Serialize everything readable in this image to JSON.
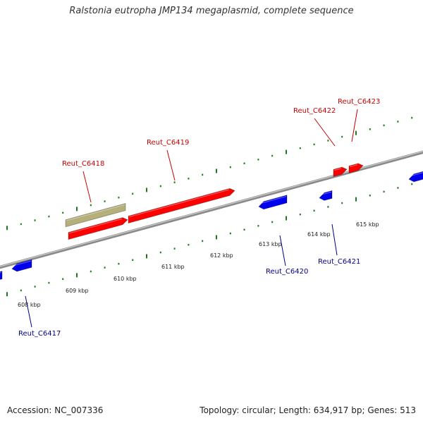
{
  "title": "Ralstonia eutropha JMP134 megaplasmid, complete sequence",
  "footer": {
    "accession": "Accession: NC_007336",
    "summary": "Topology: circular; Length: 634,917 bp; Genes: 513"
  },
  "colors": {
    "forward_gene": "#ff0000",
    "reverse_gene": "#0000ee",
    "other_feature": "#b5b07a",
    "backbone": "#8a8a8a",
    "ticks": "#1e7a1e",
    "forward_label": "#cc0000",
    "reverse_label": "#00008b"
  },
  "kbp_ticks": [
    "608 kbp",
    "609 kbp",
    "610 kbp",
    "611 kbp",
    "612 kbp",
    "613 kbp",
    "614 kbp",
    "615 kbp"
  ],
  "genes": [
    {
      "label": "Reut_C6417",
      "strand": "reverse"
    },
    {
      "label": "Reut_C6418",
      "strand": "forward"
    },
    {
      "label": "Reut_C6419",
      "strand": "forward"
    },
    {
      "label": "Reut_C6420",
      "strand": "reverse"
    },
    {
      "label": "Reut_C6421",
      "strand": "reverse"
    },
    {
      "label": "Reut_C6422",
      "strand": "forward"
    },
    {
      "label": "Reut_C6423",
      "strand": "forward"
    }
  ]
}
